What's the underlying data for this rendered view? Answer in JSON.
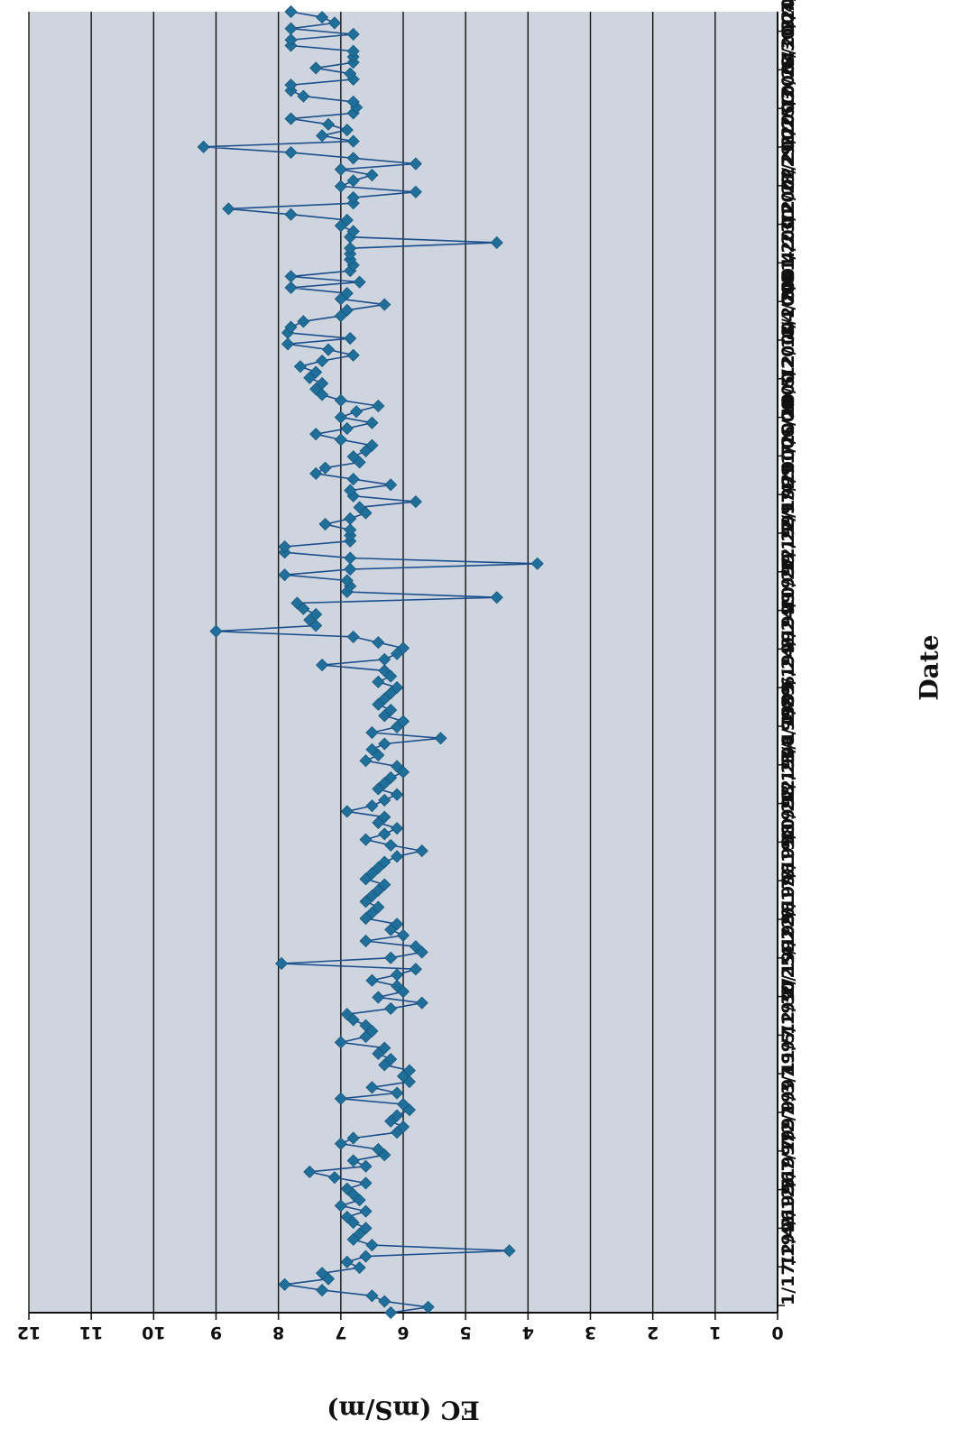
{
  "chart_data": {
    "type": "line",
    "xlabel": "Date",
    "ylabel": "EC (mS/m)",
    "ylim": [
      0,
      12
    ],
    "ytick_values": [
      0,
      1,
      2,
      3,
      4,
      5,
      6,
      7,
      8,
      9,
      10,
      11,
      12
    ],
    "ytick_labels": [
      "0",
      "1",
      "2",
      "3",
      "4",
      "5",
      "6",
      "7",
      "8",
      "9",
      "10",
      "11",
      "12"
    ],
    "xtick_labels": [
      "1/17/1996",
      "12/4/1996",
      "2/12/1997",
      "5/7/1997",
      "7/2/1997",
      "9/3/1997",
      "11/5/1997",
      "12/30/1997",
      "2/25/1998",
      "4/22/1998",
      "6/17/1998",
      "8/19/1998",
      "10/22/1998",
      "12/23/1998",
      "3/4/1999",
      "4/29/1999",
      "6/24/1999",
      "8/24/1999",
      "10/27/1999",
      "12/22/1999",
      "2/17/2000",
      "4/11/2000",
      "7/6/2000",
      "10/5/2000",
      "12/13/2000",
      "4/4/2001",
      "8/31/2001",
      "4/23/2002",
      "12/27/2002",
      "8/29/2003",
      "2/25/2004",
      "10/28/2004",
      "6/30/2005",
      "3/7/2006"
    ],
    "grid": true,
    "legend": "none",
    "orientation": "rotated-180",
    "marker": "diamond",
    "colors": {
      "series": "#1F6F9A",
      "line": "#1B4F8C",
      "plot_bg": "#CFD5DF",
      "grid": "#111111"
    },
    "series": [
      {
        "values": [
          6.2,
          5.6,
          6.3,
          6.5,
          7.3,
          7.9,
          7.2,
          7.3,
          6.7,
          6.9,
          6.6,
          4.3,
          6.5,
          6.8,
          6.7,
          6.6,
          6.8,
          6.9,
          6.6,
          7.0,
          6.7,
          6.8,
          6.9,
          6.6,
          7.1,
          7.5,
          6.6,
          6.8,
          6.3,
          6.4,
          7.0,
          6.8,
          6.1,
          6.0,
          6.2,
          6.1,
          5.9,
          6.0,
          7.0,
          6.1,
          6.5,
          5.9,
          6.0,
          5.9,
          6.3,
          6.2,
          6.4,
          6.3,
          7.0,
          6.6,
          6.5,
          6.6,
          6.8,
          6.9,
          6.2,
          5.7,
          6.4,
          6.0,
          6.1,
          6.5,
          6.1,
          5.8,
          7.95,
          6.2,
          5.7,
          5.8,
          6.6,
          6.0,
          6.2,
          6.1,
          6.6,
          6.5,
          6.4,
          6.6,
          6.5,
          6.4,
          6.3,
          6.6,
          6.5,
          6.4,
          6.3,
          6.1,
          5.7,
          6.2,
          6.6,
          6.3,
          6.1,
          6.4,
          6.3,
          6.9,
          6.5,
          6.3,
          6.1,
          6.4,
          6.3,
          6.2,
          6.0,
          6.1,
          6.6,
          6.4,
          6.5,
          6.3,
          5.4,
          6.5,
          6.1,
          6.0,
          6.3,
          6.2,
          6.4,
          6.3,
          6.2,
          6.1,
          6.4,
          6.2,
          6.3,
          7.3,
          6.3,
          6.1,
          6.0,
          6.4,
          6.8,
          9.0,
          7.4,
          7.5,
          7.4,
          7.6,
          7.7,
          4.5,
          6.9,
          6.85,
          6.9,
          7.9,
          6.85,
          3.85,
          6.85,
          7.9,
          7.9,
          6.85,
          6.85,
          6.85,
          7.25,
          6.85,
          6.6,
          6.7,
          5.8,
          6.8,
          6.85,
          6.2,
          6.8,
          7.4,
          7.25,
          6.7,
          6.8,
          6.6,
          6.5,
          7.0,
          7.4,
          6.9,
          6.5,
          7.0,
          6.75,
          6.4,
          7.0,
          7.3,
          7.4,
          7.3,
          7.5,
          7.4,
          7.65,
          7.3,
          6.8,
          7.2,
          7.85,
          6.85,
          7.85,
          7.8,
          7.6,
          7.0,
          6.9,
          6.3,
          7.0,
          6.9,
          7.8,
          6.7,
          7.8,
          6.85,
          6.8,
          6.85,
          6.85,
          6.85,
          4.5,
          6.85,
          6.8,
          7.0,
          6.9,
          7.8,
          8.8,
          6.8,
          6.8,
          5.8,
          7.0,
          6.8,
          6.5,
          7.0,
          5.8,
          6.8,
          7.8,
          9.2,
          6.8,
          7.3,
          6.9,
          7.2,
          7.8,
          6.8,
          6.75,
          6.8,
          7.6,
          7.8,
          7.8,
          6.8,
          6.85,
          7.4,
          6.8,
          6.8,
          6.8,
          7.8,
          7.8,
          6.8,
          7.8,
          7.1,
          7.3,
          7.8
        ]
      }
    ]
  }
}
